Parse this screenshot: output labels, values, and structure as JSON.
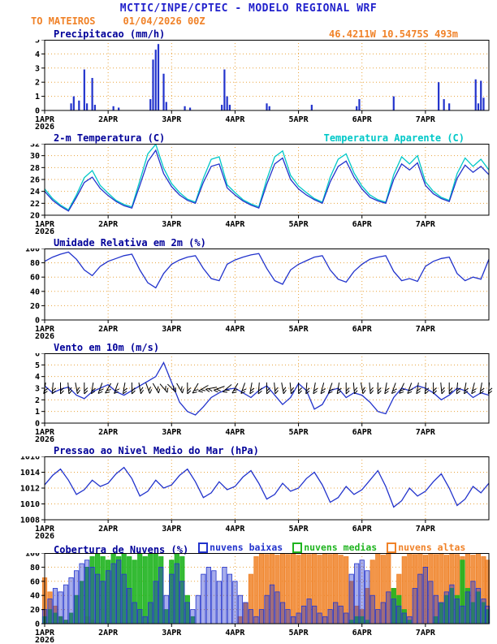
{
  "header": {
    "title": "MCTIC/INPE/CPTEC - MODELO REGIONAL WRF",
    "station": "TO MATEIROS",
    "run_datetime": "01/04/2026 00Z",
    "location": "46.4211W 10.5475S 493m"
  },
  "x_axis": {
    "day_labels": [
      "1APR",
      "2APR",
      "3APR",
      "4APR",
      "5APR",
      "6APR",
      "7APR"
    ],
    "year_label": "2026",
    "span_hours": 168,
    "tick_interval_hours": 24
  },
  "colors": {
    "header_blue": "#2222cc",
    "orange": "#f08228",
    "panel_title": "#000099",
    "grid": "#e8a33d",
    "line_blue": "#2233cc",
    "cyan": "#00c8c8",
    "cloud_low": "#2233cc",
    "cloud_mid": "#1fb41f",
    "cloud_high": "#f08228",
    "barb_black": "#000000"
  },
  "chart_data": [
    {
      "id": "precipitation",
      "type": "bar",
      "title": "Precipitacao (mm/h)",
      "annotation": "46.4211W 10.5475S 493m",
      "ylim": [
        0,
        5
      ],
      "yticks": [
        0,
        1,
        2,
        3,
        4,
        5
      ],
      "step_hours": 1,
      "n": 169,
      "values_nonzero_by_hour": {
        "10": 0.5,
        "11": 1.0,
        "13": 0.7,
        "15": 2.9,
        "16": 0.5,
        "18": 2.3,
        "19": 0.4,
        "26": 0.3,
        "28": 0.2,
        "40": 0.8,
        "41": 3.6,
        "42": 4.3,
        "43": 4.7,
        "45": 2.6,
        "46": 0.6,
        "53": 0.3,
        "55": 0.2,
        "67": 0.4,
        "68": 2.9,
        "69": 1.0,
        "70": 0.4,
        "84": 0.5,
        "85": 0.3,
        "101": 0.4,
        "118": 0.3,
        "119": 0.8,
        "132": 1.0,
        "149": 2.0,
        "151": 0.8,
        "153": 0.5,
        "163": 2.2,
        "164": 0.5,
        "165": 2.1,
        "166": 0.9
      }
    },
    {
      "id": "temperature",
      "type": "line",
      "title": "2-m Temperatura (C)",
      "legend": "Temperatura Aparente (C)",
      "ylim": [
        20,
        32
      ],
      "yticks": [
        20,
        22,
        24,
        26,
        28,
        30,
        32
      ],
      "step_hours": 3,
      "series": [
        {
          "name": "Temperatura Aparente (C)",
          "color_key": "cyan",
          "values": [
            24.4,
            22.8,
            21.7,
            20.9,
            23.4,
            26.3,
            27.5,
            25.0,
            23.7,
            22.5,
            21.8,
            21.4,
            25.8,
            30.3,
            31.9,
            27.9,
            25.3,
            23.8,
            22.7,
            22.2,
            26.2,
            29.4,
            29.8,
            25.1,
            23.8,
            22.6,
            21.9,
            21.4,
            26.0,
            29.8,
            30.8,
            26.7,
            24.9,
            23.8,
            22.8,
            22.2,
            26.4,
            29.4,
            30.3,
            27.1,
            24.9,
            23.4,
            22.6,
            22.2,
            26.8,
            29.8,
            28.6,
            30.0,
            25.6,
            24.0,
            23.0,
            22.5,
            27.0,
            29.6,
            28.2,
            29.4,
            27.6
          ]
        },
        {
          "name": "2-m Temperatura (C)",
          "color_key": "line_blue",
          "values": [
            24.0,
            22.5,
            21.5,
            20.7,
            23.0,
            25.5,
            26.4,
            24.5,
            23.3,
            22.3,
            21.6,
            21.2,
            25.0,
            29.0,
            30.9,
            27.0,
            24.8,
            23.4,
            22.5,
            22.0,
            25.5,
            28.2,
            28.6,
            24.6,
            23.4,
            22.4,
            21.7,
            21.2,
            25.2,
            28.6,
            29.6,
            26.0,
            24.4,
            23.4,
            22.6,
            22.0,
            25.6,
            28.2,
            29.1,
            26.4,
            24.4,
            23.0,
            22.4,
            22.0,
            26.0,
            28.6,
            27.6,
            28.8,
            25.0,
            23.6,
            22.8,
            22.3,
            26.2,
            28.4,
            27.2,
            28.2,
            26.8
          ]
        }
      ]
    },
    {
      "id": "humidity",
      "type": "line",
      "title": "Umidade Relativa em 2m (%)",
      "ylim": [
        0,
        100
      ],
      "yticks": [
        0,
        20,
        40,
        60,
        80,
        100
      ],
      "step_hours": 3,
      "series": [
        {
          "name": "Umidade Relativa em 2m (%)",
          "color_key": "line_blue",
          "values": [
            82,
            88,
            92,
            95,
            85,
            70,
            62,
            75,
            82,
            86,
            90,
            92,
            70,
            52,
            45,
            65,
            78,
            84,
            88,
            90,
            72,
            58,
            55,
            78,
            84,
            88,
            91,
            93,
            72,
            55,
            50,
            70,
            78,
            83,
            88,
            90,
            70,
            57,
            53,
            68,
            78,
            85,
            88,
            90,
            68,
            55,
            58,
            54,
            75,
            82,
            86,
            88,
            65,
            55,
            60,
            57,
            85
          ]
        }
      ]
    },
    {
      "id": "wind",
      "type": "line",
      "title": "Vento em 10m (m/s)",
      "ylim": [
        0,
        6
      ],
      "yticks": [
        0,
        1,
        2,
        3,
        4,
        5,
        6
      ],
      "step_hours": 3,
      "series": [
        {
          "name": "Vento em 10m (m/s)",
          "color_key": "line_blue",
          "values": [
            3.2,
            2.6,
            2.9,
            3.1,
            2.4,
            2.1,
            2.7,
            3.0,
            3.3,
            2.7,
            2.4,
            2.8,
            3.2,
            3.6,
            4.0,
            5.2,
            3.5,
            1.8,
            1.0,
            0.7,
            1.4,
            2.2,
            2.6,
            2.9,
            3.0,
            2.6,
            2.2,
            2.8,
            3.2,
            2.4,
            1.6,
            2.2,
            3.4,
            2.8,
            1.2,
            1.6,
            2.8,
            3.0,
            2.2,
            2.6,
            2.4,
            1.8,
            1.0,
            0.8,
            2.2,
            3.0,
            2.8,
            3.2,
            3.0,
            2.6,
            2.0,
            2.4,
            3.0,
            2.8,
            2.2,
            2.6,
            2.4
          ]
        }
      ],
      "barbs": {
        "level": 3,
        "color_key": "barb_black",
        "dirs_deg": [
          100,
          95,
          90,
          85,
          80,
          90,
          100,
          110,
          120,
          110,
          100,
          90,
          80,
          70,
          60,
          50,
          45,
          60,
          90,
          120,
          150,
          170,
          160,
          140,
          120,
          110,
          100,
          95,
          90,
          85,
          80,
          85,
          90,
          95,
          100,
          105,
          110,
          100,
          90,
          85,
          80,
          85,
          90,
          100,
          110,
          115,
          110,
          100,
          95,
          90,
          85,
          90,
          95,
          100,
          105,
          100,
          95
        ]
      }
    },
    {
      "id": "pressure",
      "type": "line",
      "title": "Pressao ao Nivel Medio do Mar (hPa)",
      "ylim": [
        1008,
        1016
      ],
      "yticks": [
        1008,
        1010,
        1012,
        1014,
        1016
      ],
      "step_hours": 3,
      "series": [
        {
          "name": "Pressao ao Nivel Medio do Mar (hPa)",
          "color_key": "line_blue",
          "values": [
            1012.4,
            1013.6,
            1014.4,
            1013.0,
            1011.2,
            1011.8,
            1013.0,
            1012.2,
            1012.6,
            1013.8,
            1014.6,
            1013.2,
            1011.0,
            1011.6,
            1013.0,
            1012.0,
            1012.4,
            1013.6,
            1014.4,
            1012.8,
            1010.8,
            1011.4,
            1012.8,
            1011.8,
            1012.2,
            1013.4,
            1014.2,
            1012.6,
            1010.6,
            1011.2,
            1012.6,
            1011.6,
            1012.0,
            1013.2,
            1014.0,
            1012.4,
            1010.2,
            1010.8,
            1012.2,
            1011.2,
            1011.8,
            1013.0,
            1014.2,
            1012.2,
            1009.6,
            1010.4,
            1012.0,
            1011.0,
            1011.6,
            1012.8,
            1013.8,
            1012.0,
            1009.8,
            1010.6,
            1012.2,
            1011.4,
            1012.6
          ]
        }
      ]
    },
    {
      "id": "clouds",
      "type": "bar",
      "title": "Cobertura de Nuvens (%)",
      "ylim": [
        0,
        100
      ],
      "yticks": [
        0,
        20,
        40,
        60,
        80,
        100
      ],
      "step_hours": 2,
      "legend_items": [
        {
          "label": "nuvens baixas",
          "color_key": "cloud_low"
        },
        {
          "label": "nuvens medias",
          "color_key": "cloud_mid"
        },
        {
          "label": "nuvens altas",
          "color_key": "cloud_high"
        }
      ],
      "series": [
        {
          "name": "nuvens altas",
          "color_key": "cloud_high",
          "opacity": 0.85,
          "values": [
            65,
            45,
            25,
            10,
            5,
            0,
            0,
            0,
            10,
            5,
            0,
            0,
            0,
            0,
            0,
            0,
            0,
            0,
            0,
            0,
            0,
            0,
            0,
            0,
            0,
            0,
            0,
            0,
            0,
            0,
            0,
            0,
            0,
            0,
            0,
            0,
            0,
            10,
            30,
            70,
            95,
            100,
            98,
            100,
            97,
            100,
            98,
            100,
            97,
            100,
            98,
            100,
            97,
            100,
            98,
            100,
            97,
            95,
            60,
            25,
            20,
            50,
            90,
            100,
            97,
            100,
            50,
            70,
            95,
            100,
            98,
            100,
            97,
            100,
            98,
            100,
            97,
            100,
            98,
            95,
            100,
            97,
            100,
            95,
            90
          ]
        },
        {
          "name": "nuvens medias",
          "color_key": "cloud_mid",
          "opacity": 0.9,
          "values": [
            10,
            20,
            15,
            10,
            5,
            15,
            40,
            60,
            80,
            95,
            100,
            95,
            90,
            100,
            95,
            100,
            95,
            90,
            100,
            95,
            100,
            100,
            95,
            20,
            90,
            100,
            95,
            40,
            10,
            0,
            0,
            0,
            0,
            0,
            0,
            0,
            0,
            0,
            0,
            0,
            0,
            0,
            0,
            0,
            0,
            0,
            0,
            0,
            0,
            0,
            0,
            0,
            0,
            0,
            0,
            0,
            0,
            0,
            5,
            10,
            10,
            5,
            0,
            0,
            0,
            0,
            50,
            40,
            20,
            5,
            0,
            0,
            0,
            0,
            10,
            30,
            40,
            50,
            40,
            90,
            50,
            30,
            45,
            30,
            20
          ]
        },
        {
          "name": "nuvens baixas",
          "color_key": "cloud_low",
          "opacity": 0.4,
          "values": [
            20,
            35,
            50,
            45,
            55,
            65,
            75,
            85,
            90,
            80,
            70,
            60,
            75,
            85,
            90,
            70,
            50,
            30,
            20,
            10,
            30,
            60,
            80,
            40,
            70,
            85,
            60,
            30,
            20,
            40,
            70,
            80,
            75,
            60,
            80,
            70,
            60,
            40,
            30,
            20,
            10,
            20,
            40,
            55,
            45,
            30,
            20,
            10,
            15,
            25,
            35,
            25,
            15,
            10,
            20,
            30,
            25,
            15,
            70,
            85,
            90,
            75,
            40,
            20,
            30,
            45,
            35,
            25,
            15,
            10,
            50,
            70,
            80,
            60,
            40,
            30,
            45,
            55,
            35,
            25,
            45,
            60,
            50,
            35,
            25
          ]
        }
      ]
    }
  ]
}
